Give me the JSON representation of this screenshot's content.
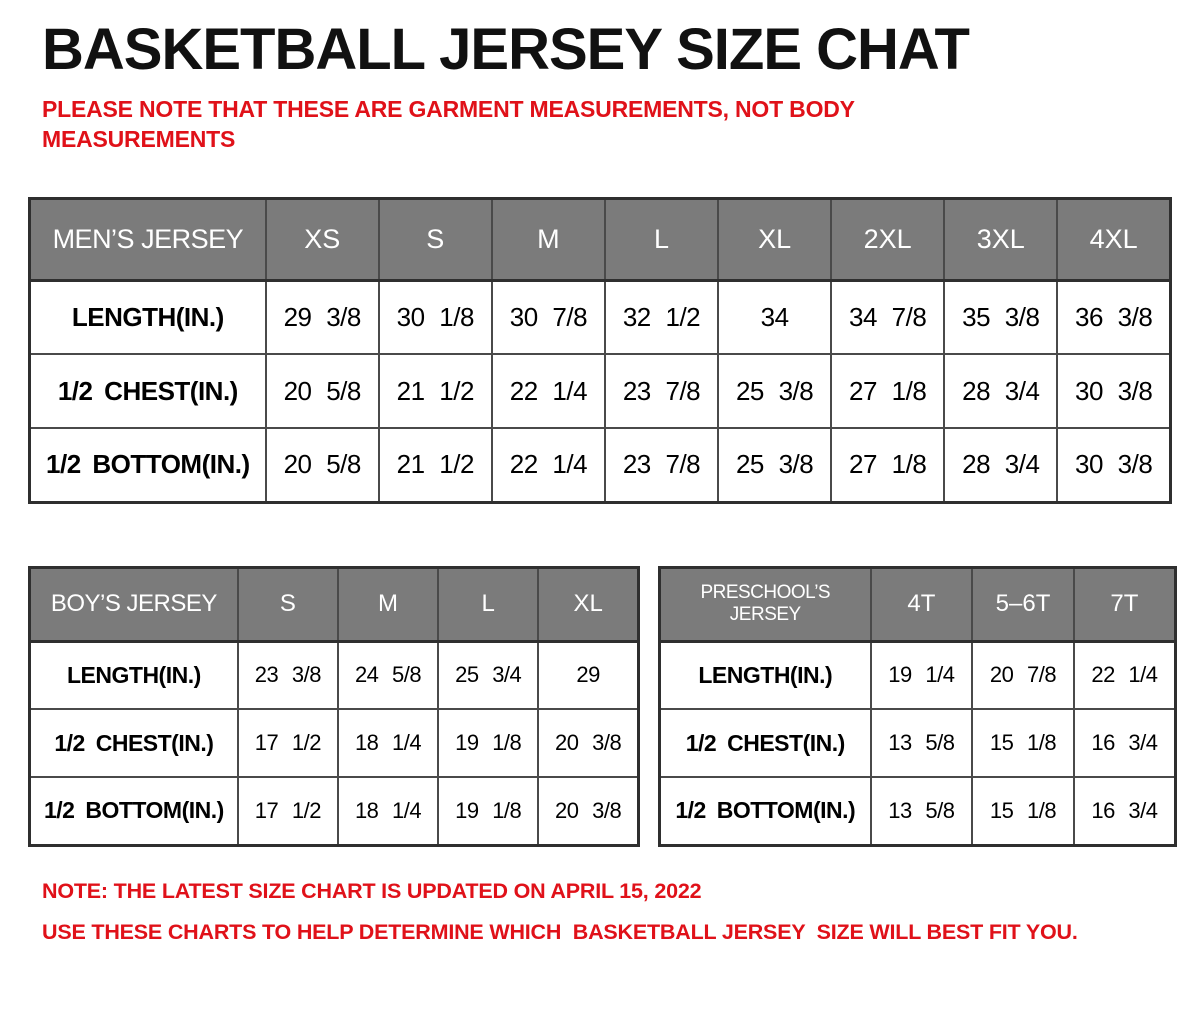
{
  "page": {
    "title": "BASKETBALL JERSEY SIZE CHAT",
    "disclaimer": "PLEASE NOTE THAT THESE ARE GARMENT MEASUREMENTS, NOT BODY MEASUREMENTS",
    "note_update": "NOTE: THE LATEST SIZE CHART IS UPDATED ON APRIL 15, 2022",
    "note_usage": "USE THESE CHARTS TO HELP DETERMINE WHICH  BASKETBALL JERSEY  SIZE WILL BEST FIT YOU."
  },
  "colors": {
    "accent_red": "#e01119",
    "header_gray": "#7b7b7b",
    "border_dark": "#2f2f2f",
    "text_black": "#111111"
  },
  "tables": {
    "mens": {
      "name_header": "MEN’S JERSEY",
      "sizes": [
        "XS",
        "S",
        "M",
        "L",
        "XL",
        "2XL",
        "3XL",
        "4XL"
      ],
      "rows": [
        {
          "label": "LENGTH(IN.)",
          "values": [
            "29 3/8",
            "30 1/8",
            "30 7/8",
            "32 1/2",
            "34",
            "34 7/8",
            "35 3/8",
            "36 3/8"
          ]
        },
        {
          "label": "1/2 CHEST(IN.)",
          "values": [
            "20 5/8",
            "21 1/2",
            "22 1/4",
            "23 7/8",
            "25 3/8",
            "27 1/8",
            "28 3/4",
            "30 3/8"
          ]
        },
        {
          "label": "1/2 BOTTOM(IN.)",
          "values": [
            "20 5/8",
            "21 1/2",
            "22 1/4",
            "23 7/8",
            "25 3/8",
            "27 1/8",
            "28 3/4",
            "30 3/8"
          ]
        }
      ]
    },
    "boys": {
      "name_header": "BOY’S JERSEY",
      "sizes": [
        "S",
        "M",
        "L",
        "XL"
      ],
      "rows": [
        {
          "label": "LENGTH(IN.)",
          "values": [
            "23 3/8",
            "24 5/8",
            "25 3/4",
            "29"
          ]
        },
        {
          "label": "1/2 CHEST(IN.)",
          "values": [
            "17 1/2",
            "18 1/4",
            "19 1/8",
            "20 3/8"
          ]
        },
        {
          "label": "1/2 BOTTOM(IN.)",
          "values": [
            "17 1/2",
            "18 1/4",
            "19 1/8",
            "20 3/8"
          ]
        }
      ]
    },
    "preschool": {
      "name_header": "PRESCHOOL’S JERSEY",
      "sizes": [
        "4T",
        "5–6T",
        "7T"
      ],
      "rows": [
        {
          "label": "LENGTH(IN.)",
          "values": [
            "19 1/4",
            "20 7/8",
            "22 1/4"
          ]
        },
        {
          "label": "1/2 CHEST(IN.)",
          "values": [
            "13 5/8",
            "15 1/8",
            "16 3/4"
          ]
        },
        {
          "label": "1/2 BOTTOM(IN.)",
          "values": [
            "13 5/8",
            "15 1/8",
            "16 3/4"
          ]
        }
      ]
    }
  }
}
